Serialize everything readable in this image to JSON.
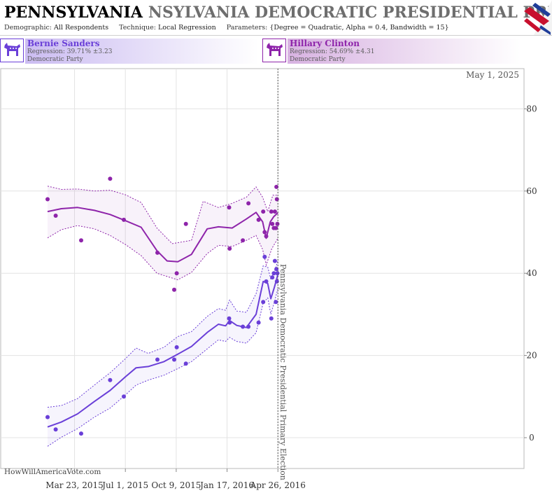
{
  "header": {
    "title_main": "PENNSYLVANIA",
    "title_echo": "NSYLVANIA DEMOCRATIC PRESIDENTIAL PRIM",
    "demographic_label": "Demographic:",
    "demographic_value": "All Respondents",
    "technique_label": "Technique:",
    "technique_value": "Local Regression",
    "parameters_label": "Parameters:",
    "parameters_value": "{Degree = Quadratic, Alpha = 0.4, Bandwidth = 15}"
  },
  "candidates": [
    {
      "name": "Bernie Sanders",
      "regression": "Regression: 39.71% ±3.23",
      "party": "Democratic Party",
      "color": "#6a3fd8"
    },
    {
      "name": "Hillary Clinton",
      "regression": "Regression: 54.69% ±4.31",
      "party": "Democratic Party",
      "color": "#8e24aa"
    }
  ],
  "footer": {
    "watermark": "HowWillAmericaVote.com"
  },
  "chart_data": {
    "type": "scatter",
    "date_label": "May 1, 2025",
    "event_label": "Pennsylvania Democratic Presidential Primary Election",
    "event_date": "2016-04-26",
    "x_start": "2015-01-29",
    "xlim": [
      "2015-01-12",
      "2016-05-06"
    ],
    "x_ticks": [
      "2015-03-23",
      "2015-07-01",
      "2015-10-09",
      "2016-01-17",
      "2016-04-26"
    ],
    "x_tick_labels": [
      "Mar 23, 2015",
      "Jul 1, 2015",
      "Oct 9, 2015",
      "Jan 17, 2016",
      "Apr 26, 2016"
    ],
    "ylim": [
      -5,
      90
    ],
    "y_ticks": [
      0,
      20,
      40,
      60,
      80
    ],
    "y_tick_labels": [
      "0",
      "20",
      "40",
      "60",
      "80"
    ],
    "series": [
      {
        "name": "Hillary Clinton",
        "color": "#8e24aa",
        "points": [
          [
            "2015-01-29",
            58
          ],
          [
            "2015-02-14",
            54
          ],
          [
            "2015-04-05",
            48
          ],
          [
            "2015-06-01",
            63
          ],
          [
            "2015-06-28",
            53
          ],
          [
            "2015-09-02",
            45
          ],
          [
            "2015-10-05",
            36
          ],
          [
            "2015-10-10",
            40
          ],
          [
            "2015-10-28",
            52
          ],
          [
            "2016-01-21",
            56
          ],
          [
            "2016-01-22",
            46
          ],
          [
            "2016-02-17",
            48
          ],
          [
            "2016-02-28",
            57
          ],
          [
            "2016-03-19",
            53
          ],
          [
            "2016-03-28",
            55
          ],
          [
            "2016-03-31",
            50
          ],
          [
            "2016-04-03",
            49
          ],
          [
            "2016-04-13",
            55
          ],
          [
            "2016-04-15",
            52
          ],
          [
            "2016-04-18",
            51
          ],
          [
            "2016-04-20",
            55
          ],
          [
            "2016-04-22",
            51
          ],
          [
            "2016-04-23",
            61
          ],
          [
            "2016-04-24",
            58
          ],
          [
            "2016-04-25",
            52
          ]
        ],
        "trend": [
          [
            "2015-01-29",
            55
          ],
          [
            "2015-02-25",
            55.7
          ],
          [
            "2015-03-29",
            56
          ],
          [
            "2015-05-01",
            55.3
          ],
          [
            "2015-06-01",
            54.3
          ],
          [
            "2015-07-01",
            52.8
          ],
          [
            "2015-08-01",
            51.2
          ],
          [
            "2015-09-01",
            45.5
          ],
          [
            "2015-09-21",
            43
          ],
          [
            "2015-10-12",
            42.8
          ],
          [
            "2015-11-08",
            44.6
          ],
          [
            "2015-12-09",
            50.8
          ],
          [
            "2015-12-31",
            51.3
          ],
          [
            "2016-01-27",
            51
          ],
          [
            "2016-02-24",
            53.2
          ],
          [
            "2016-03-14",
            54.8
          ],
          [
            "2016-03-27",
            52.5
          ],
          [
            "2016-04-03",
            48.5
          ],
          [
            "2016-04-11",
            52.5
          ],
          [
            "2016-04-18",
            53.8
          ],
          [
            "2016-04-26",
            54.7
          ]
        ],
        "band_upper": [
          [
            "2015-01-29",
            61.2
          ],
          [
            "2015-02-25",
            60.4
          ],
          [
            "2015-03-29",
            60.5
          ],
          [
            "2015-05-01",
            60
          ],
          [
            "2015-06-01",
            60.2
          ],
          [
            "2015-07-01",
            59.1
          ],
          [
            "2015-08-01",
            57.2
          ],
          [
            "2015-09-01",
            51
          ],
          [
            "2015-10-01",
            47.2
          ],
          [
            "2015-11-08",
            48
          ],
          [
            "2015-12-01",
            57.5
          ],
          [
            "2015-12-31",
            56
          ],
          [
            "2016-01-27",
            57
          ],
          [
            "2016-02-24",
            58.5
          ],
          [
            "2016-03-14",
            61
          ],
          [
            "2016-03-27",
            58.5
          ],
          [
            "2016-04-06",
            55
          ],
          [
            "2016-04-16",
            59
          ],
          [
            "2016-04-26",
            59
          ]
        ],
        "band_lower": [
          [
            "2015-01-29",
            48.6
          ],
          [
            "2015-02-25",
            50.6
          ],
          [
            "2015-03-29",
            51.6
          ],
          [
            "2015-05-01",
            50.8
          ],
          [
            "2015-06-01",
            49.2
          ],
          [
            "2015-07-01",
            47
          ],
          [
            "2015-08-01",
            44.3
          ],
          [
            "2015-09-01",
            40
          ],
          [
            "2015-10-12",
            38.4
          ],
          [
            "2015-11-08",
            40.2
          ],
          [
            "2015-12-09",
            44.8
          ],
          [
            "2015-12-31",
            46.8
          ],
          [
            "2016-01-27",
            46.5
          ],
          [
            "2016-02-24",
            48
          ],
          [
            "2016-03-14",
            49.2
          ],
          [
            "2016-03-27",
            45.8
          ],
          [
            "2016-04-03",
            42
          ],
          [
            "2016-04-14",
            46
          ],
          [
            "2016-04-26",
            48.5
          ]
        ]
      },
      {
        "name": "Bernie Sanders",
        "color": "#6a3fd8",
        "points": [
          [
            "2015-01-29",
            5
          ],
          [
            "2015-02-14",
            2
          ],
          [
            "2015-04-05",
            1
          ],
          [
            "2015-06-01",
            14
          ],
          [
            "2015-06-28",
            10
          ],
          [
            "2015-09-02",
            19
          ],
          [
            "2015-10-05",
            19
          ],
          [
            "2015-10-10",
            22
          ],
          [
            "2015-10-28",
            18
          ],
          [
            "2016-01-21",
            29
          ],
          [
            "2016-01-22",
            28
          ],
          [
            "2016-02-17",
            27
          ],
          [
            "2016-02-28",
            27
          ],
          [
            "2016-03-19",
            28
          ],
          [
            "2016-03-28",
            33
          ],
          [
            "2016-03-31",
            44
          ],
          [
            "2016-04-03",
            38
          ],
          [
            "2016-04-13",
            29
          ],
          [
            "2016-04-15",
            39
          ],
          [
            "2016-04-18",
            40
          ],
          [
            "2016-04-20",
            43
          ],
          [
            "2016-04-22",
            33
          ],
          [
            "2016-04-23",
            41
          ],
          [
            "2016-04-24",
            38
          ],
          [
            "2016-04-25",
            40
          ]
        ],
        "trend": [
          [
            "2015-01-29",
            2.6
          ],
          [
            "2015-02-25",
            3.8
          ],
          [
            "2015-03-29",
            5.8
          ],
          [
            "2015-05-01",
            8.8
          ],
          [
            "2015-06-01",
            11.5
          ],
          [
            "2015-07-01",
            14.8
          ],
          [
            "2015-07-22",
            17
          ],
          [
            "2015-08-15",
            17.3
          ],
          [
            "2015-09-15",
            18.5
          ],
          [
            "2015-10-12",
            20.3
          ],
          [
            "2015-11-08",
            22.2
          ],
          [
            "2015-12-09",
            25.6
          ],
          [
            "2015-12-31",
            27.6
          ],
          [
            "2016-01-14",
            27.2
          ],
          [
            "2016-01-22",
            28.5
          ],
          [
            "2016-02-05",
            27.3
          ],
          [
            "2016-02-24",
            26.8
          ],
          [
            "2016-03-14",
            30
          ],
          [
            "2016-03-28",
            38
          ],
          [
            "2016-04-06",
            37.5
          ],
          [
            "2016-04-12",
            33.8
          ],
          [
            "2016-04-19",
            36.6
          ],
          [
            "2016-04-26",
            39.7
          ]
        ],
        "band_upper": [
          [
            "2015-01-29",
            7.4
          ],
          [
            "2015-02-25",
            7.8
          ],
          [
            "2015-03-29",
            9.5
          ],
          [
            "2015-05-01",
            12.8
          ],
          [
            "2015-06-01",
            15.8
          ],
          [
            "2015-07-01",
            19.2
          ],
          [
            "2015-07-22",
            21.8
          ],
          [
            "2015-08-15",
            20.5
          ],
          [
            "2015-09-15",
            22
          ],
          [
            "2015-10-12",
            24.6
          ],
          [
            "2015-11-08",
            25.8
          ],
          [
            "2015-12-09",
            29.5
          ],
          [
            "2015-12-31",
            31.4
          ],
          [
            "2016-01-14",
            31
          ],
          [
            "2016-01-22",
            33.5
          ],
          [
            "2016-02-05",
            30.8
          ],
          [
            "2016-02-24",
            30.5
          ],
          [
            "2016-03-14",
            35
          ],
          [
            "2016-03-28",
            41.8
          ],
          [
            "2016-04-06",
            41.5
          ],
          [
            "2016-04-12",
            38.5
          ],
          [
            "2016-04-19",
            40.5
          ],
          [
            "2016-04-26",
            43
          ]
        ],
        "band_lower": [
          [
            "2015-01-29",
            -2.1
          ],
          [
            "2015-02-25",
            0.1
          ],
          [
            "2015-03-29",
            2.2
          ],
          [
            "2015-05-01",
            5
          ],
          [
            "2015-06-01",
            7.2
          ],
          [
            "2015-07-01",
            10.4
          ],
          [
            "2015-07-22",
            12.8
          ],
          [
            "2015-08-15",
            14
          ],
          [
            "2015-09-15",
            15.2
          ],
          [
            "2015-10-12",
            16.8
          ],
          [
            "2015-11-08",
            18.5
          ],
          [
            "2015-12-09",
            21.6
          ],
          [
            "2015-12-31",
            23.8
          ],
          [
            "2016-01-14",
            23.4
          ],
          [
            "2016-01-22",
            24.4
          ],
          [
            "2016-02-05",
            23.4
          ],
          [
            "2016-02-24",
            23
          ],
          [
            "2016-03-14",
            25.5
          ],
          [
            "2016-03-28",
            32.8
          ],
          [
            "2016-04-06",
            34
          ],
          [
            "2016-04-12",
            30
          ],
          [
            "2016-04-19",
            33
          ],
          [
            "2016-04-26",
            36.2
          ]
        ]
      }
    ]
  }
}
